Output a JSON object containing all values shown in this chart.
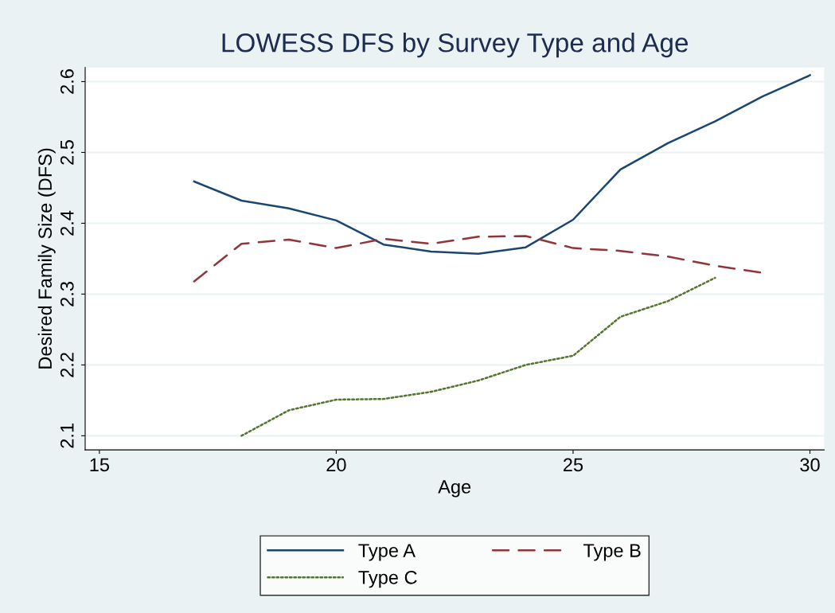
{
  "chart_data": {
    "type": "line",
    "title": "LOWESS DFS by Survey Type and Age",
    "xlabel": "Age",
    "ylabel": "Desired Family Size (DFS)",
    "xlim": [
      14.7,
      30.3
    ],
    "xticks": [
      15,
      20,
      25,
      30
    ],
    "ylim": [
      2.08,
      2.62
    ],
    "yticks": [
      2.1,
      2.2,
      2.3,
      2.4,
      2.5,
      2.6
    ],
    "grid": "y",
    "legend": "bottom",
    "series": [
      {
        "name": "Type A",
        "color": "#1a476f",
        "line_style": "solid",
        "x": [
          17,
          18,
          19,
          20,
          21,
          22,
          23,
          24,
          25,
          26,
          27,
          28,
          29,
          30
        ],
        "values": [
          2.459,
          2.432,
          2.421,
          2.404,
          2.37,
          2.36,
          2.357,
          2.366,
          2.405,
          2.476,
          2.513,
          2.544,
          2.579,
          2.609
        ]
      },
      {
        "name": "Type B",
        "color": "#90353b",
        "line_style": "dashed",
        "x": [
          17,
          18,
          19,
          20,
          21,
          22,
          23,
          24,
          25,
          26,
          27,
          28,
          29
        ],
        "values": [
          2.318,
          2.371,
          2.377,
          2.365,
          2.378,
          2.371,
          2.381,
          2.382,
          2.365,
          2.361,
          2.353,
          2.34,
          2.33
        ]
      },
      {
        "name": "Type C",
        "color": "#55752f",
        "line_style": "dotted",
        "x": [
          18,
          19,
          20,
          21,
          22,
          23,
          24,
          25,
          26,
          27,
          28
        ],
        "values": [
          2.1,
          2.136,
          2.151,
          2.152,
          2.162,
          2.178,
          2.2,
          2.213,
          2.268,
          2.29,
          2.323
        ]
      }
    ]
  }
}
